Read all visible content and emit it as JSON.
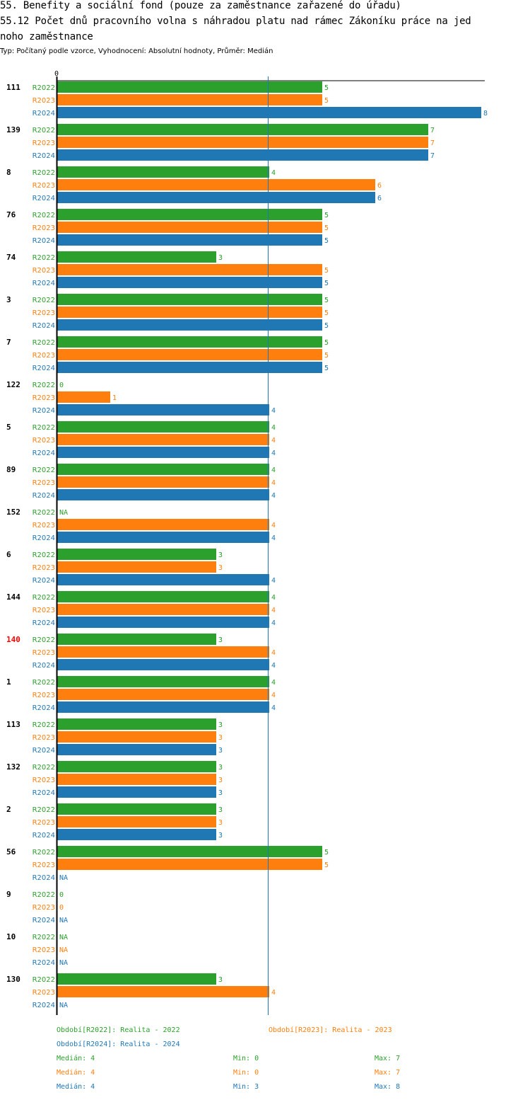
{
  "header": {
    "title_line1": "55. Benefity a sociální fond (pouze za zaměstnance zařazené do úřadu)",
    "title_line2": "55.12 Počet dnů pracovního volna s náhradou platu nad rámec Zákoníku práce na jed",
    "title_line3": "noho zaměstnance",
    "subtitle": "Typ: Počítaný podle vzorce, Vyhodnocení: Absolutní hodnoty, Průměr: Medián"
  },
  "colors": {
    "R2022": "#2ca02c",
    "R2023": "#ff7f0e",
    "R2024": "#1f77b4",
    "highlight": "#ff0000"
  },
  "chart_data": {
    "type": "bar",
    "orientation": "horizontal",
    "xlim": [
      0,
      8
    ],
    "x_tick_labels": [
      "0"
    ],
    "reference_line_value": 4,
    "series_names": [
      "R2022",
      "R2023",
      "R2024"
    ],
    "highlight_group": "140",
    "groups": [
      {
        "label": "111",
        "values": [
          5,
          5,
          8
        ]
      },
      {
        "label": "139",
        "values": [
          7,
          7,
          7
        ]
      },
      {
        "label": "8",
        "values": [
          4,
          6,
          6
        ]
      },
      {
        "label": "76",
        "values": [
          5,
          5,
          5
        ]
      },
      {
        "label": "74",
        "values": [
          3,
          5,
          5
        ]
      },
      {
        "label": "3",
        "values": [
          5,
          5,
          5
        ]
      },
      {
        "label": "7",
        "values": [
          5,
          5,
          5
        ]
      },
      {
        "label": "122",
        "values": [
          0,
          1,
          4
        ]
      },
      {
        "label": "5",
        "values": [
          4,
          4,
          4
        ]
      },
      {
        "label": "89",
        "values": [
          4,
          4,
          4
        ]
      },
      {
        "label": "152",
        "values": [
          null,
          4,
          4
        ]
      },
      {
        "label": "6",
        "values": [
          3,
          3,
          4
        ]
      },
      {
        "label": "144",
        "values": [
          4,
          4,
          4
        ]
      },
      {
        "label": "140",
        "values": [
          3,
          4,
          4
        ]
      },
      {
        "label": "1",
        "values": [
          4,
          4,
          4
        ]
      },
      {
        "label": "113",
        "values": [
          3,
          3,
          3
        ]
      },
      {
        "label": "132",
        "values": [
          3,
          3,
          3
        ]
      },
      {
        "label": "2",
        "values": [
          3,
          3,
          3
        ]
      },
      {
        "label": "56",
        "values": [
          5,
          5,
          null
        ]
      },
      {
        "label": "9",
        "values": [
          0,
          0,
          null
        ]
      },
      {
        "label": "10",
        "values": [
          null,
          null,
          null
        ]
      },
      {
        "label": "130",
        "values": [
          3,
          4,
          null
        ]
      }
    ],
    "na_label": "NA"
  },
  "legend": {
    "r2022": "Období[R2022]: Realita - 2022",
    "r2023": "Období[R2023]: Realita - 2023",
    "r2024": "Období[R2024]: Realita - 2024",
    "stats": [
      {
        "median": "Medián: 4",
        "min": "Min: 0",
        "max": "Max: 7"
      },
      {
        "median": "Medián: 4",
        "min": "Min: 0",
        "max": "Max: 7"
      },
      {
        "median": "Medián: 4",
        "min": "Min: 3",
        "max": "Max: 8"
      }
    ]
  }
}
